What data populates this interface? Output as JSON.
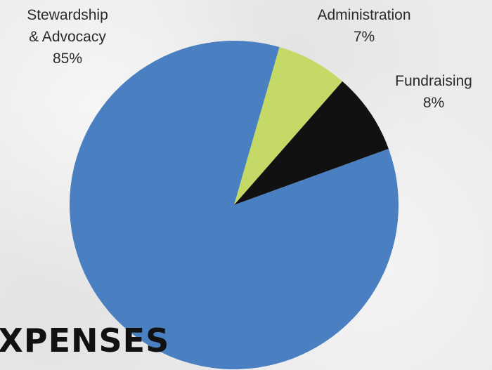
{
  "heading": "EXPENSES",
  "chart_data": {
    "type": "pie",
    "slices": [
      {
        "label_lines": [
          "Administration",
          "7%"
        ],
        "value": 7,
        "color": "#c5d967"
      },
      {
        "label_lines": [
          "Fundraising",
          "8%"
        ],
        "value": 8,
        "color": "#111111"
      },
      {
        "label_lines": [
          "Stewardship",
          "& Advocacy",
          "85%"
        ],
        "value": 85,
        "color": "#4a7fc1"
      }
    ]
  }
}
